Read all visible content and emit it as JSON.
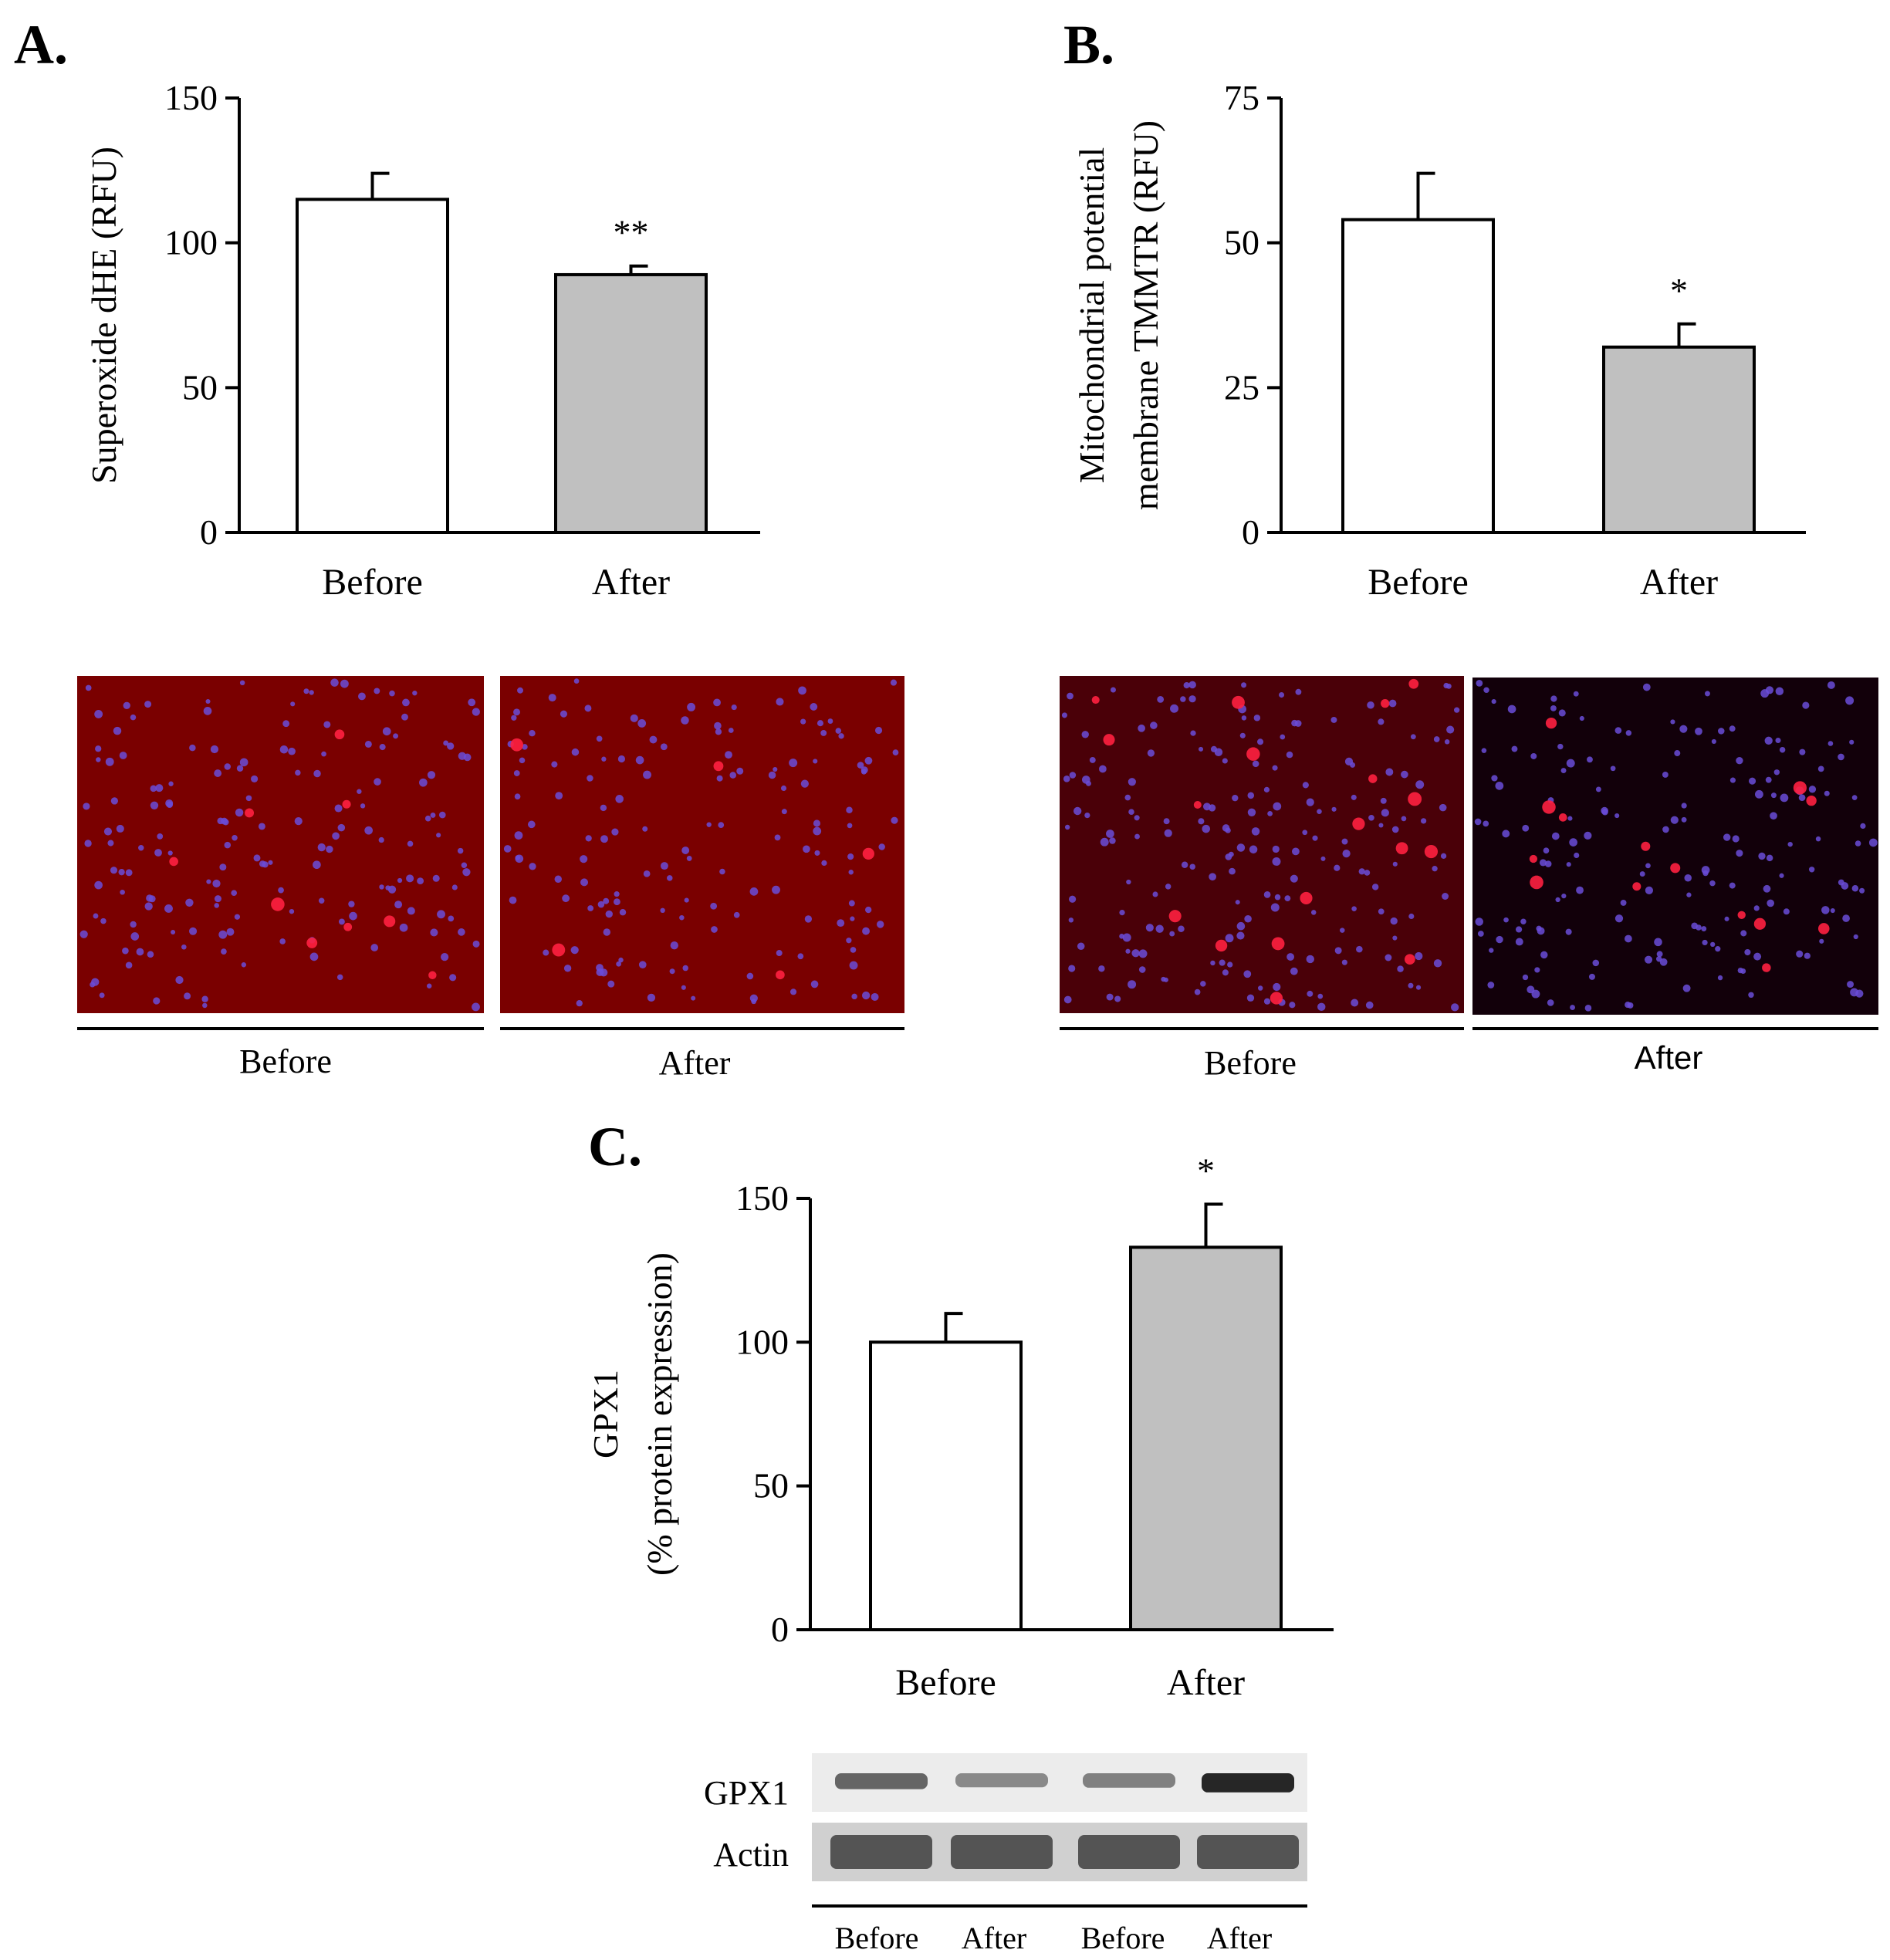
{
  "colors": {
    "bar_before": "#ffffff",
    "bar_after": "#c0c0c0",
    "micro_bg_A": "#7a0000",
    "micro_bg_B": "#4a0008",
    "micro_bg_B_after": "#12000a",
    "cell_blue": "#6a4cd8",
    "cell_red": "#ff2040"
  },
  "panels": {
    "A": {
      "letter": "A."
    },
    "B": {
      "letter": "B."
    },
    "C": {
      "letter": "C."
    }
  },
  "micrographs": {
    "A": {
      "labels": [
        "Before",
        "After"
      ]
    },
    "B": {
      "labels": [
        "Before",
        "After"
      ]
    }
  },
  "blot": {
    "row_labels": [
      "GPX1",
      "Actin"
    ],
    "lane_labels": [
      "Before",
      "After",
      "Before",
      "After"
    ],
    "gpx1_intensity": [
      0.55,
      0.35,
      0.4,
      0.9
    ],
    "actin_intensity": [
      0.6,
      0.6,
      0.6,
      0.6
    ]
  },
  "chart_data": [
    {
      "id": "A",
      "type": "bar",
      "categories": [
        "Before",
        "After"
      ],
      "values": [
        115,
        89
      ],
      "errors": [
        9,
        3
      ],
      "significance": [
        "",
        "**"
      ],
      "ylabel": "Superoxide dHE (RFU)",
      "ylim": [
        0,
        150
      ],
      "yticks": [
        "0",
        "50",
        "100",
        "150"
      ],
      "grid": false
    },
    {
      "id": "B",
      "type": "bar",
      "categories": [
        "Before",
        "After"
      ],
      "values": [
        54,
        32
      ],
      "errors": [
        8,
        4
      ],
      "significance": [
        "",
        "*"
      ],
      "ylabel_lines": [
        "Mitochondrial potential",
        "membrane TMMTR (RFU)"
      ],
      "ylim": [
        0,
        75
      ],
      "yticks": [
        "0",
        "25",
        "50",
        "75"
      ],
      "grid": false
    },
    {
      "id": "C",
      "type": "bar",
      "categories": [
        "Before",
        "After"
      ],
      "values": [
        100,
        133
      ],
      "errors": [
        10,
        15
      ],
      "significance": [
        "",
        "*"
      ],
      "ylabel_lines": [
        "GPX1",
        "(% protein expression)"
      ],
      "ylim": [
        0,
        150
      ],
      "yticks": [
        "0",
        "50",
        "100",
        "150"
      ],
      "grid": false
    }
  ]
}
